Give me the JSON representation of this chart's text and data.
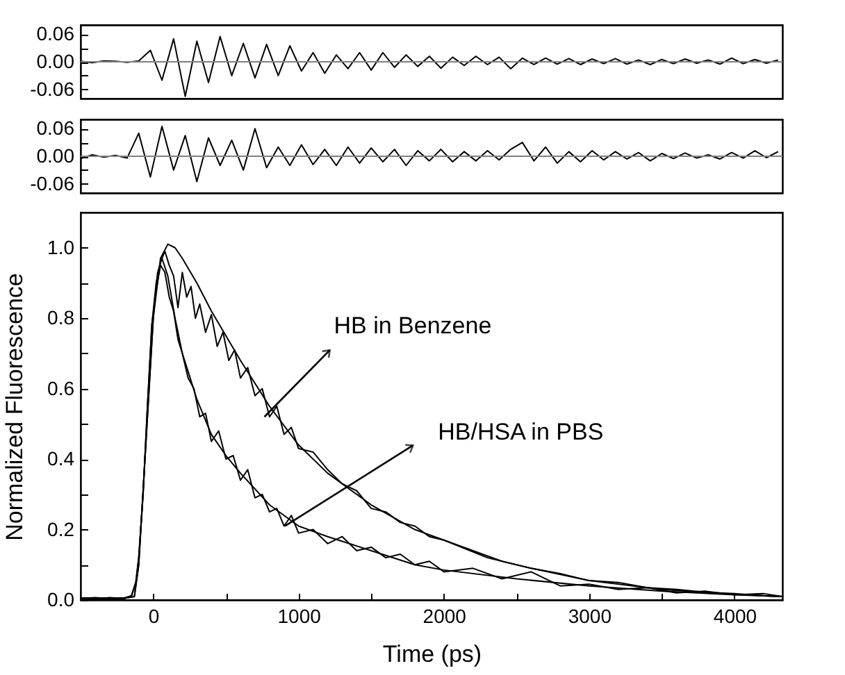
{
  "chart_data": [
    {
      "type": "line",
      "xlim": [
        -500,
        4330
      ],
      "ylim": [
        -0.08,
        0.08
      ],
      "tick_labels": "y",
      "yticks": [
        0.06,
        {
          "value": 0.03,
          "label": null
        },
        {
          "value": 0,
          "label": "0.00"
        },
        {
          "value": -0.03,
          "label": null
        },
        -0.06
      ],
      "ref_lines": [
        {
          "axis": "y",
          "value": 0,
          "color": "#808080"
        }
      ],
      "series": [
        {
          "color": "#000000",
          "x": [
            -500,
            -420,
            -340,
            -260,
            -180,
            -100,
            -20,
            60,
            140,
            220,
            300,
            380,
            460,
            540,
            620,
            700,
            780,
            860,
            940,
            1020,
            1100,
            1180,
            1260,
            1340,
            1420,
            1500,
            1580,
            1660,
            1740,
            1820,
            1900,
            1980,
            2060,
            2140,
            2220,
            2300,
            2380,
            2460,
            2540,
            2620,
            2700,
            2780,
            2860,
            2940,
            3020,
            3100,
            3180,
            3260,
            3340,
            3420,
            3500,
            3580,
            3660,
            3740,
            3820,
            3900,
            3980,
            4060,
            4140,
            4220,
            4300
          ],
          "values": [
            0.001,
            -0.002,
            0.002,
            0.001,
            -0.001,
            0.002,
            0.025,
            -0.04,
            0.05,
            -0.075,
            0.045,
            -0.045,
            0.055,
            -0.03,
            0.04,
            -0.035,
            0.038,
            -0.03,
            0.035,
            -0.02,
            0.02,
            -0.025,
            0.015,
            -0.015,
            0.02,
            -0.018,
            0.02,
            -0.012,
            0.015,
            -0.01,
            0.012,
            -0.014,
            0.01,
            -0.008,
            0.012,
            -0.006,
            0.01,
            -0.015,
            0.008,
            -0.006,
            0.008,
            -0.005,
            0.007,
            -0.006,
            0.006,
            -0.004,
            0.007,
            -0.005,
            0.004,
            -0.006,
            0.005,
            -0.004,
            0.006,
            -0.003,
            0.004,
            -0.005,
            0.008,
            -0.004,
            0.005,
            -0.003,
            0.004
          ]
        }
      ]
    },
    {
      "type": "line",
      "xlim": [
        -500,
        4330
      ],
      "ylim": [
        -0.08,
        0.08
      ],
      "tick_labels": "y",
      "yticks": [
        0.06,
        {
          "value": 0.03,
          "label": null
        },
        {
          "value": 0,
          "label": "0.00"
        },
        {
          "value": -0.03,
          "label": null
        },
        -0.06
      ],
      "ref_lines": [
        {
          "axis": "y",
          "value": 0,
          "color": "#808080"
        }
      ],
      "series": [
        {
          "color": "#000000",
          "x": [
            -500,
            -420,
            -340,
            -260,
            -180,
            -100,
            -20,
            60,
            140,
            220,
            300,
            380,
            460,
            540,
            620,
            700,
            780,
            860,
            940,
            1020,
            1100,
            1180,
            1260,
            1340,
            1420,
            1500,
            1580,
            1660,
            1740,
            1820,
            1900,
            1980,
            2060,
            2140,
            2220,
            2300,
            2380,
            2460,
            2540,
            2620,
            2700,
            2780,
            2860,
            2940,
            3020,
            3100,
            3180,
            3260,
            3340,
            3420,
            3500,
            3580,
            3660,
            3740,
            3820,
            3900,
            3980,
            4060,
            4140,
            4220,
            4300
          ],
          "values": [
            -0.005,
            0.003,
            -0.002,
            0.002,
            -0.004,
            0.05,
            -0.045,
            0.065,
            -0.03,
            0.045,
            -0.055,
            0.04,
            -0.02,
            0.035,
            -0.03,
            0.06,
            -0.025,
            0.02,
            -0.02,
            0.025,
            -0.018,
            0.015,
            -0.02,
            0.02,
            -0.015,
            0.018,
            -0.012,
            0.015,
            -0.02,
            0.012,
            -0.01,
            0.015,
            -0.012,
            0.01,
            -0.01,
            0.012,
            -0.008,
            0.015,
            0.03,
            -0.01,
            0.02,
            -0.015,
            0.01,
            -0.012,
            0.012,
            -0.008,
            0.01,
            -0.006,
            0.008,
            -0.01,
            0.006,
            -0.005,
            0.007,
            -0.004,
            0.003,
            -0.006,
            0.008,
            -0.004,
            0.012,
            -0.003,
            0.01
          ]
        }
      ]
    },
    {
      "type": "line",
      "xlabel": "Time (ps)",
      "ylabel": "Normalized Fluorescence",
      "xlim": [
        -500,
        4330
      ],
      "ylim": [
        0,
        1.1
      ],
      "xticks": [
        0,
        {
          "value": 500,
          "label": null
        },
        1000,
        {
          "value": 1500,
          "label": null
        },
        2000,
        {
          "value": 2500,
          "label": null
        },
        3000,
        {
          "value": 3500,
          "label": null
        },
        4000
      ],
      "yticks": [
        {
          "value": 0,
          "label": "0.0"
        },
        {
          "value": 0.1,
          "label": null
        },
        0.2,
        {
          "value": 0.3,
          "label": null
        },
        0.4,
        {
          "value": 0.5,
          "label": null
        },
        0.6,
        {
          "value": 0.7,
          "label": null
        },
        0.8,
        {
          "value": 0.9,
          "label": null
        },
        {
          "value": 1,
          "label": "1.0"
        }
      ],
      "annotations": [
        {
          "text": "HB in Benzene",
          "x": 765,
          "y": 0.52
        },
        {
          "text": "HB/HSA in PBS",
          "x": 907,
          "y": 0.21
        }
      ],
      "series": [
        {
          "color": "#000000",
          "x": [
            -500,
            -400,
            -300,
            -200,
            -150,
            -120,
            -100,
            -70,
            -40,
            -10,
            20,
            50,
            80,
            110,
            140,
            170,
            200,
            230,
            260,
            290,
            320,
            360,
            400,
            440,
            480,
            520,
            560,
            600,
            650,
            700,
            750,
            800,
            850,
            900,
            950,
            1000,
            1100,
            1200,
            1300,
            1400,
            1500,
            1600,
            1700,
            1800,
            1900,
            2000,
            2200,
            2400,
            2600,
            2800,
            3000,
            3200,
            3400,
            3600,
            3800,
            4000,
            4200,
            4330
          ],
          "values": [
            0.004,
            0.007,
            0.003,
            0.006,
            0.012,
            0.05,
            0.12,
            0.3,
            0.55,
            0.78,
            0.9,
            0.96,
            0.99,
            0.95,
            0.92,
            0.83,
            0.93,
            0.86,
            0.89,
            0.8,
            0.84,
            0.76,
            0.81,
            0.72,
            0.76,
            0.68,
            0.71,
            0.63,
            0.66,
            0.58,
            0.6,
            0.52,
            0.55,
            0.47,
            0.49,
            0.43,
            0.42,
            0.37,
            0.33,
            0.31,
            0.26,
            0.25,
            0.22,
            0.21,
            0.18,
            0.17,
            0.14,
            0.11,
            0.09,
            0.075,
            0.055,
            0.05,
            0.035,
            0.03,
            0.022,
            0.018,
            0.012,
            0.01
          ]
        },
        {
          "color": "#000000",
          "x": [
            -500,
            -200,
            -130,
            -100,
            -50,
            0,
            50,
            100,
            150,
            200,
            300,
            400,
            500,
            600,
            800,
            1000,
            1200,
            1500,
            1800,
            2000,
            2300,
            2600,
            3000,
            3500,
            4000,
            4330
          ],
          "values": [
            0.005,
            0.005,
            0.01,
            0.1,
            0.45,
            0.8,
            0.97,
            1.01,
            1,
            0.97,
            0.9,
            0.82,
            0.75,
            0.68,
            0.55,
            0.44,
            0.36,
            0.27,
            0.2,
            0.17,
            0.12,
            0.09,
            0.055,
            0.03,
            0.016,
            0.01
          ]
        },
        {
          "color": "#000000",
          "x": [
            -500,
            -400,
            -300,
            -200,
            -150,
            -120,
            -100,
            -70,
            -40,
            -10,
            20,
            50,
            80,
            110,
            140,
            170,
            200,
            240,
            280,
            320,
            360,
            400,
            450,
            500,
            550,
            600,
            650,
            700,
            750,
            800,
            850,
            900,
            950,
            1000,
            1100,
            1200,
            1300,
            1400,
            1500,
            1600,
            1700,
            1800,
            1900,
            2000,
            2200,
            2400,
            2600,
            2800,
            3000,
            3200,
            3400,
            3600,
            3800,
            4000,
            4200,
            4330
          ],
          "values": [
            0.006,
            0.003,
            0.007,
            0.004,
            0.012,
            0.05,
            0.12,
            0.3,
            0.55,
            0.78,
            0.88,
            0.95,
            0.93,
            0.86,
            0.82,
            0.74,
            0.7,
            0.63,
            0.6,
            0.52,
            0.53,
            0.45,
            0.48,
            0.4,
            0.41,
            0.34,
            0.37,
            0.29,
            0.3,
            0.25,
            0.26,
            0.21,
            0.24,
            0.19,
            0.2,
            0.16,
            0.18,
            0.14,
            0.15,
            0.12,
            0.13,
            0.1,
            0.11,
            0.08,
            0.09,
            0.06,
            0.08,
            0.04,
            0.045,
            0.03,
            0.035,
            0.02,
            0.025,
            0.015,
            0.018,
            0.01
          ]
        },
        {
          "color": "#000000",
          "x": [
            -500,
            -200,
            -130,
            -100,
            -50,
            0,
            30,
            60,
            100,
            150,
            200,
            300,
            400,
            500,
            600,
            800,
            1000,
            1200,
            1500,
            1800,
            2000,
            2500,
            3000,
            3500,
            4000,
            4330
          ],
          "values": [
            0.005,
            0.005,
            0.01,
            0.1,
            0.45,
            0.8,
            0.93,
            0.97,
            0.92,
            0.8,
            0.7,
            0.57,
            0.47,
            0.41,
            0.36,
            0.27,
            0.21,
            0.18,
            0.14,
            0.1,
            0.085,
            0.06,
            0.04,
            0.025,
            0.015,
            0.01
          ]
        }
      ]
    }
  ]
}
